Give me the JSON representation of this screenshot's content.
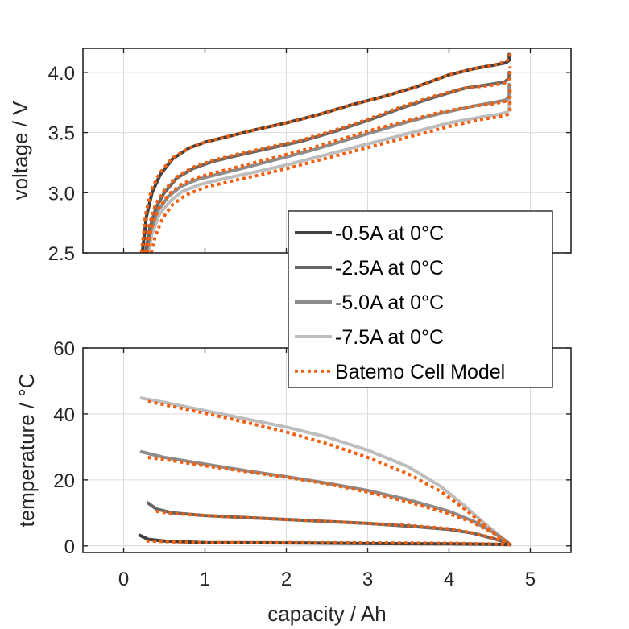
{
  "chart_data": [
    {
      "type": "line",
      "title": "",
      "xlabel": "",
      "ylabel": "voltage / V",
      "xlim": [
        -0.5,
        5.5
      ],
      "ylim": [
        2.5,
        4.2
      ],
      "xticks": [
        0,
        1,
        2,
        3,
        4,
        5
      ],
      "yticks": [
        2.5,
        3.0,
        3.5,
        4.0
      ],
      "ytick_labels": [
        "2.5",
        "3.0",
        "3.5",
        "4.0"
      ],
      "grid": true,
      "series": [
        {
          "name": "-0.5A at 0°C",
          "color": "#404040",
          "style": "solid",
          "x": [
            0.23,
            0.28,
            0.35,
            0.45,
            0.6,
            0.8,
            1.0,
            1.3,
            1.6,
            2.0,
            2.4,
            2.8,
            3.2,
            3.6,
            4.0,
            4.3,
            4.55,
            4.7,
            4.74,
            4.74
          ],
          "y": [
            2.5,
            2.8,
            3.0,
            3.15,
            3.28,
            3.37,
            3.42,
            3.47,
            3.52,
            3.58,
            3.65,
            3.73,
            3.8,
            3.88,
            3.98,
            4.03,
            4.06,
            4.08,
            4.1,
            4.15
          ]
        },
        {
          "name": "-2.5A at 0°C",
          "color": "#666666",
          "style": "solid",
          "x": [
            0.27,
            0.32,
            0.4,
            0.5,
            0.65,
            0.85,
            1.1,
            1.4,
            1.8,
            2.2,
            2.6,
            3.0,
            3.4,
            3.8,
            4.2,
            4.5,
            4.68,
            4.74,
            4.74
          ],
          "y": [
            2.5,
            2.7,
            2.88,
            3.0,
            3.12,
            3.2,
            3.26,
            3.31,
            3.37,
            3.43,
            3.51,
            3.6,
            3.7,
            3.79,
            3.87,
            3.9,
            3.92,
            3.95,
            4.0
          ]
        },
        {
          "name": "-5.0A at 0°C",
          "color": "#8c8c8c",
          "style": "solid",
          "x": [
            0.28,
            0.33,
            0.42,
            0.55,
            0.7,
            0.9,
            1.2,
            1.5,
            1.9,
            2.3,
            2.7,
            3.1,
            3.5,
            3.9,
            4.3,
            4.55,
            4.7,
            4.74,
            4.74
          ],
          "y": [
            2.5,
            2.68,
            2.85,
            2.97,
            3.05,
            3.11,
            3.16,
            3.21,
            3.28,
            3.35,
            3.43,
            3.51,
            3.59,
            3.66,
            3.72,
            3.75,
            3.77,
            3.8,
            3.9
          ]
        },
        {
          "name": "-7.5A at 0°C",
          "color": "#bdbdbd",
          "style": "solid",
          "x": [
            0.3,
            0.35,
            0.44,
            0.57,
            0.72,
            0.95,
            1.25,
            1.6,
            2.0,
            2.4,
            2.8,
            3.2,
            3.6,
            4.0,
            4.4,
            4.6,
            4.72,
            4.74,
            4.74
          ],
          "y": [
            2.5,
            2.66,
            2.82,
            2.93,
            3.01,
            3.07,
            3.12,
            3.17,
            3.23,
            3.3,
            3.37,
            3.44,
            3.51,
            3.58,
            3.63,
            3.65,
            3.67,
            3.7,
            3.8
          ]
        },
        {
          "name": "Batemo Cell Model (-0.5A)",
          "color": "#f06010",
          "style": "dotted",
          "x": [
            0.22,
            0.27,
            0.34,
            0.44,
            0.6,
            0.8,
            1.0,
            1.3,
            1.6,
            2.0,
            2.4,
            2.8,
            3.2,
            3.6,
            4.0,
            4.3,
            4.55,
            4.7,
            4.75,
            4.75
          ],
          "y": [
            2.5,
            2.82,
            3.02,
            3.16,
            3.29,
            3.37,
            3.42,
            3.47,
            3.52,
            3.58,
            3.65,
            3.73,
            3.8,
            3.88,
            3.98,
            4.03,
            4.06,
            4.09,
            4.12,
            4.17
          ]
        },
        {
          "name": "Batemo Cell Model (-2.5A)",
          "color": "#f06010",
          "style": "dotted",
          "x": [
            0.26,
            0.31,
            0.39,
            0.5,
            0.65,
            0.85,
            1.1,
            1.4,
            1.8,
            2.2,
            2.6,
            3.0,
            3.4,
            3.8,
            4.2,
            4.5,
            4.68,
            4.75,
            4.75
          ],
          "y": [
            2.5,
            2.72,
            2.9,
            3.02,
            3.13,
            3.21,
            3.27,
            3.32,
            3.38,
            3.44,
            3.52,
            3.61,
            3.71,
            3.8,
            3.87,
            3.89,
            3.91,
            3.95,
            4.05
          ]
        },
        {
          "name": "Batemo Cell Model (-5.0A)",
          "color": "#f06010",
          "style": "dotted",
          "x": [
            0.29,
            0.34,
            0.43,
            0.56,
            0.71,
            0.92,
            1.2,
            1.5,
            1.9,
            2.3,
            2.7,
            3.1,
            3.5,
            3.9,
            4.3,
            4.55,
            4.7,
            4.75,
            4.75
          ],
          "y": [
            2.5,
            2.7,
            2.87,
            2.99,
            3.07,
            3.13,
            3.18,
            3.23,
            3.3,
            3.37,
            3.45,
            3.53,
            3.6,
            3.67,
            3.72,
            3.74,
            3.76,
            3.8,
            3.9
          ]
        },
        {
          "name": "Batemo Cell Model (-7.5A)",
          "color": "#f06010",
          "style": "dotted",
          "x": [
            0.34,
            0.39,
            0.48,
            0.6,
            0.76,
            0.98,
            1.28,
            1.62,
            2.0,
            2.4,
            2.8,
            3.2,
            3.6,
            4.0,
            4.4,
            4.6,
            4.72,
            4.75,
            4.75
          ],
          "y": [
            2.5,
            2.64,
            2.79,
            2.9,
            2.98,
            3.04,
            3.09,
            3.14,
            3.2,
            3.27,
            3.34,
            3.41,
            3.48,
            3.55,
            3.61,
            3.63,
            3.65,
            3.68,
            3.8
          ]
        }
      ]
    },
    {
      "type": "line",
      "title": "",
      "xlabel": "capacity / Ah",
      "ylabel": "temperature / °C",
      "xlim": [
        -0.5,
        5.5
      ],
      "ylim": [
        -2,
        60
      ],
      "xticks": [
        0,
        1,
        2,
        3,
        4,
        5
      ],
      "xtick_labels": [
        "0",
        "1",
        "2",
        "3",
        "4",
        "5"
      ],
      "yticks": [
        0,
        20,
        40,
        60
      ],
      "ytick_labels": [
        "0",
        "20",
        "40",
        "60"
      ],
      "grid": true,
      "series": [
        {
          "name": "-0.5A at 0°C",
          "color": "#404040",
          "style": "solid",
          "x": [
            0.2,
            0.3,
            0.5,
            1.0,
            2.0,
            3.0,
            4.0,
            4.5,
            4.75
          ],
          "y": [
            3.2,
            2.0,
            1.5,
            1.0,
            0.9,
            0.7,
            0.6,
            0.5,
            0.4
          ]
        },
        {
          "name": "-2.5A at 0°C",
          "color": "#666666",
          "style": "solid",
          "x": [
            0.3,
            0.4,
            0.6,
            1.0,
            1.5,
            2.0,
            2.5,
            3.0,
            3.5,
            4.0,
            4.3,
            4.55,
            4.7,
            4.75
          ],
          "y": [
            13.0,
            11.2,
            10.0,
            9.2,
            8.6,
            8.0,
            7.4,
            6.8,
            6.0,
            5.0,
            3.8,
            2.2,
            1.0,
            0.5
          ]
        },
        {
          "name": "-5.0A at 0°C",
          "color": "#8c8c8c",
          "style": "solid",
          "x": [
            0.22,
            0.5,
            1.0,
            1.5,
            2.0,
            2.5,
            3.0,
            3.5,
            4.0,
            4.3,
            4.55,
            4.7,
            4.75
          ],
          "y": [
            28.5,
            26.8,
            24.8,
            22.8,
            21.0,
            19.0,
            16.8,
            14.0,
            10.5,
            7.5,
            4.0,
            1.5,
            0.5
          ]
        },
        {
          "name": "-7.5A at 0°C",
          "color": "#bdbdbd",
          "style": "solid",
          "x": [
            0.22,
            0.5,
            1.0,
            1.5,
            2.0,
            2.5,
            3.0,
            3.5,
            3.9,
            4.2,
            4.45,
            4.65,
            4.75
          ],
          "y": [
            44.8,
            43.5,
            41.0,
            38.5,
            36.0,
            33.0,
            29.0,
            24.0,
            18.0,
            12.0,
            6.5,
            2.5,
            0.5
          ]
        },
        {
          "name": "Batemo Cell Model (-0.5A)",
          "color": "#f06010",
          "style": "dotted",
          "x": [
            0.28,
            0.5,
            1.0,
            2.0,
            3.0,
            4.0,
            4.5,
            4.75
          ],
          "y": [
            1.5,
            1.3,
            1.0,
            1.0,
            0.9,
            0.8,
            0.6,
            0.4
          ]
        },
        {
          "name": "Batemo Cell Model (-2.5A)",
          "color": "#f06010",
          "style": "dotted",
          "x": [
            0.4,
            0.6,
            1.0,
            1.5,
            2.0,
            2.5,
            3.0,
            3.5,
            4.0,
            4.3,
            4.55,
            4.7,
            4.75
          ],
          "y": [
            10.5,
            9.8,
            9.2,
            8.6,
            8.0,
            7.4,
            6.8,
            6.2,
            5.2,
            3.9,
            2.3,
            1.0,
            0.5
          ]
        },
        {
          "name": "Batemo Cell Model (-5.0A)",
          "color": "#f06010",
          "style": "dotted",
          "x": [
            0.3,
            0.5,
            1.0,
            1.5,
            2.0,
            2.5,
            3.0,
            3.5,
            4.0,
            4.3,
            4.55,
            4.7,
            4.75
          ],
          "y": [
            26.8,
            26.2,
            24.3,
            22.5,
            20.8,
            18.8,
            16.3,
            13.3,
            9.8,
            7.0,
            3.8,
            1.5,
            0.5
          ]
        },
        {
          "name": "Batemo Cell Model (-7.5A)",
          "color": "#f06010",
          "style": "dotted",
          "x": [
            0.3,
            0.5,
            1.0,
            1.5,
            2.0,
            2.5,
            3.0,
            3.5,
            3.9,
            4.2,
            4.45,
            4.65,
            4.75
          ],
          "y": [
            43.8,
            42.8,
            40.2,
            37.5,
            34.5,
            31.0,
            26.8,
            21.8,
            16.5,
            11.0,
            6.0,
            2.3,
            0.5
          ]
        }
      ]
    }
  ],
  "legend": {
    "placement": "center-right",
    "entries": [
      {
        "label": "-0.5A at 0°C",
        "color": "#404040",
        "style": "solid"
      },
      {
        "label": "-2.5A at 0°C",
        "color": "#666666",
        "style": "solid"
      },
      {
        "label": "-5.0A at 0°C",
        "color": "#8c8c8c",
        "style": "solid"
      },
      {
        "label": "-7.5A at 0°C",
        "color": "#bdbdbd",
        "style": "solid"
      },
      {
        "label": "Batemo Cell Model",
        "color": "#f06010",
        "style": "dotted"
      }
    ]
  }
}
